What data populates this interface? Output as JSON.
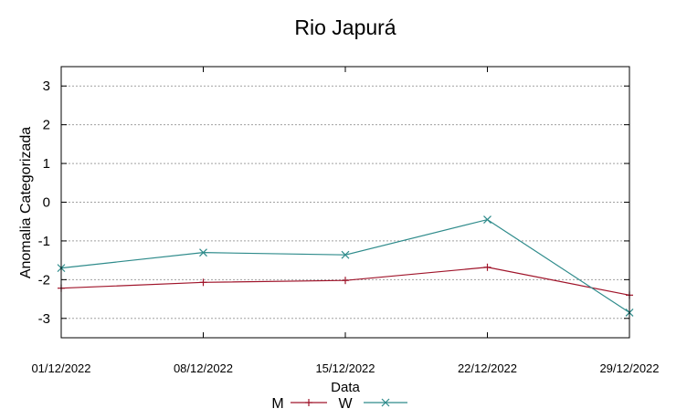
{
  "chart_data": {
    "type": "line",
    "title": "Rio Japurá",
    "xlabel": "Data",
    "ylabel": "Anomalia Categorizada",
    "categories": [
      "01/12/2022",
      "08/12/2022",
      "15/12/2022",
      "22/12/2022",
      "29/12/2022"
    ],
    "yticks": [
      -3,
      -2,
      -1,
      0,
      1,
      2,
      3
    ],
    "ylim": [
      -3.5,
      3.5
    ],
    "grid": true,
    "legend_position": "bottom",
    "series": [
      {
        "name": "M",
        "color": "#a0142a",
        "marker": "plus",
        "values": [
          -2.22,
          -2.07,
          -2.02,
          -1.68,
          -2.4
        ]
      },
      {
        "name": "W",
        "color": "#2e8b8b",
        "marker": "cross",
        "values": [
          -1.7,
          -1.3,
          -1.36,
          -0.45,
          -2.85
        ]
      }
    ]
  }
}
